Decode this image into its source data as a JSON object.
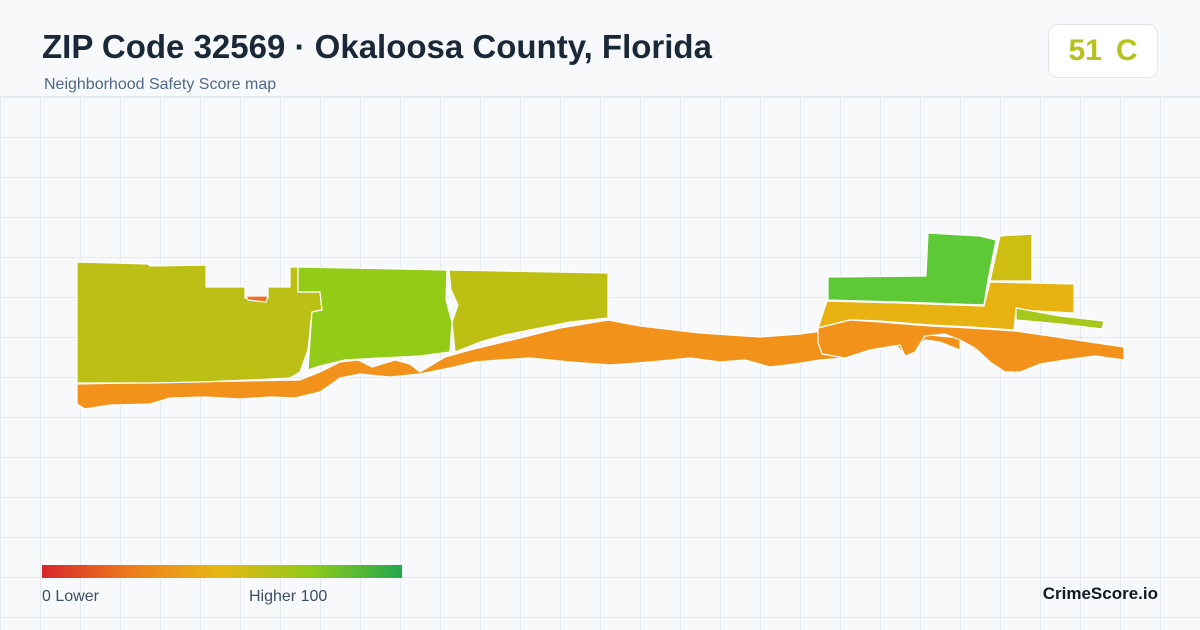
{
  "header": {
    "title": "ZIP Code 32569 · Okaloosa County, Florida",
    "subtitle": "Neighborhood Safety Score map"
  },
  "score": {
    "value": "51",
    "grade": "C",
    "color": "#b8c21c"
  },
  "legend": {
    "low_label": "0  Lower",
    "high_label": "Higher  100",
    "colors": [
      "#d7262b",
      "#ee7d1d",
      "#e6b814",
      "#8fc91a",
      "#23a84e"
    ]
  },
  "map": {
    "regions": [
      {
        "name": "west-beach-strip",
        "color": "#f2921a"
      },
      {
        "name": "west-inland-block",
        "color": "#bcbf14"
      },
      {
        "name": "west-small-pocket",
        "color": "#ef6e22"
      },
      {
        "name": "center-west-block",
        "color": "#92cc16"
      },
      {
        "name": "center-block",
        "color": "#bdbf12"
      },
      {
        "name": "central-beach-strip",
        "color": "#f2921a"
      },
      {
        "name": "east-green-block",
        "color": "#5ec937"
      },
      {
        "name": "east-north-block",
        "color": "#cfbe12"
      },
      {
        "name": "east-yellow-block",
        "color": "#e8b312"
      },
      {
        "name": "east-thin-strip",
        "color": "#a7c81a"
      },
      {
        "name": "east-beach-strip",
        "color": "#f2921a"
      }
    ]
  },
  "brand": "CrimeScore.io"
}
